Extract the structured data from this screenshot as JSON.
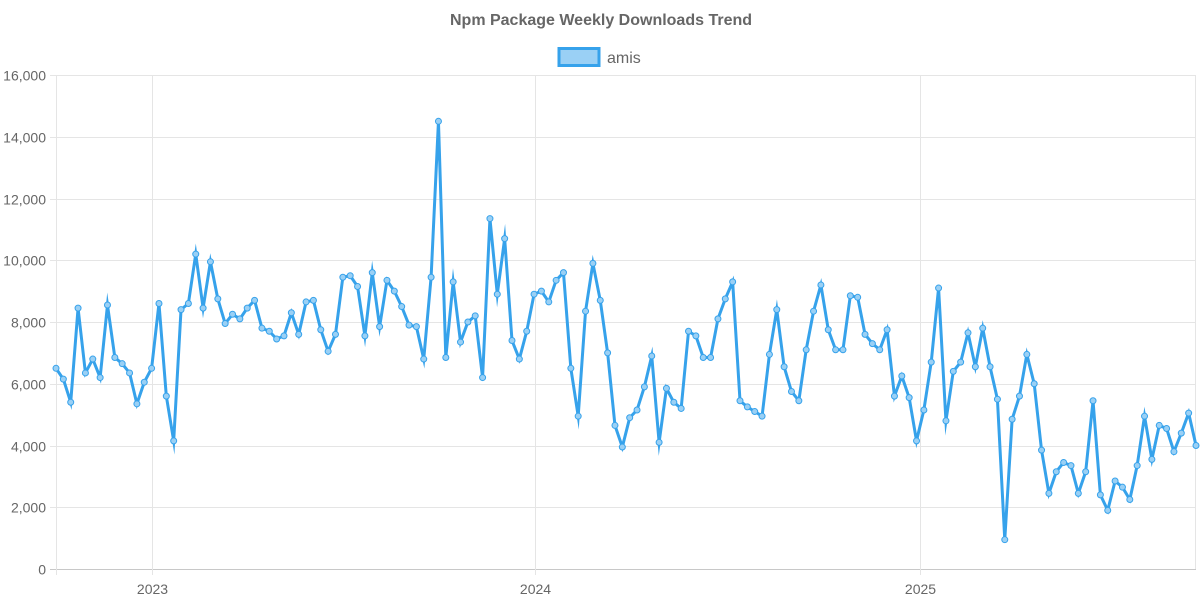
{
  "chart_data": {
    "type": "line",
    "title": "Npm Package Weekly Downloads Trend",
    "xlabel": "",
    "ylabel": "",
    "ylim": [
      0,
      16000
    ],
    "yticks": [
      0,
      2000,
      4000,
      6000,
      8000,
      10000,
      12000,
      14000,
      16000
    ],
    "ytick_labels": [
      "0",
      "2,000",
      "4,000",
      "6,000",
      "8,000",
      "10,000",
      "12,000",
      "14,000",
      "16,000"
    ],
    "xlim": [
      "2022-10-02",
      "2025-09-21"
    ],
    "xticks": [
      "2023-01-01",
      "2024-01-01",
      "2025-01-01"
    ],
    "xtick_labels": [
      "2023",
      "2024",
      "2025"
    ],
    "grid": true,
    "legend": {
      "position": "top"
    },
    "colors": {
      "line": "#36a2eb",
      "fill": "#9ad0f5"
    },
    "series": [
      {
        "name": "amis",
        "x": [
          "2022-10-02",
          "2022-10-09",
          "2022-10-16",
          "2022-10-23",
          "2022-10-30",
          "2022-11-06",
          "2022-11-13",
          "2022-11-20",
          "2022-11-27",
          "2022-12-04",
          "2022-12-11",
          "2022-12-18",
          "2022-12-25",
          "2023-01-01",
          "2023-01-08",
          "2023-01-15",
          "2023-01-22",
          "2023-01-29",
          "2023-02-05",
          "2023-02-12",
          "2023-02-19",
          "2023-02-26",
          "2023-03-05",
          "2023-03-12",
          "2023-03-19",
          "2023-03-26",
          "2023-04-02",
          "2023-04-09",
          "2023-04-16",
          "2023-04-23",
          "2023-04-30",
          "2023-05-07",
          "2023-05-14",
          "2023-05-21",
          "2023-05-28",
          "2023-06-04",
          "2023-06-11",
          "2023-06-18",
          "2023-06-25",
          "2023-07-02",
          "2023-07-09",
          "2023-07-16",
          "2023-07-23",
          "2023-07-30",
          "2023-08-06",
          "2023-08-13",
          "2023-08-20",
          "2023-08-27",
          "2023-09-03",
          "2023-09-10",
          "2023-09-17",
          "2023-09-24",
          "2023-10-01",
          "2023-10-08",
          "2023-10-15",
          "2023-10-22",
          "2023-10-29",
          "2023-11-05",
          "2023-11-12",
          "2023-11-19",
          "2023-11-26",
          "2023-12-03",
          "2023-12-10",
          "2023-12-17",
          "2023-12-24",
          "2023-12-31",
          "2024-01-07",
          "2024-01-14",
          "2024-01-21",
          "2024-01-28",
          "2024-02-04",
          "2024-02-11",
          "2024-02-18",
          "2024-02-25",
          "2024-03-03",
          "2024-03-10",
          "2024-03-17",
          "2024-03-24",
          "2024-03-31",
          "2024-04-07",
          "2024-04-14",
          "2024-04-21",
          "2024-04-28",
          "2024-05-05",
          "2024-05-12",
          "2024-05-19",
          "2024-05-26",
          "2024-06-02",
          "2024-06-09",
          "2024-06-16",
          "2024-06-23",
          "2024-06-30",
          "2024-07-07",
          "2024-07-14",
          "2024-07-21",
          "2024-07-28",
          "2024-08-04",
          "2024-08-11",
          "2024-08-18",
          "2024-08-25",
          "2024-09-01",
          "2024-09-08",
          "2024-09-15",
          "2024-09-22",
          "2024-09-29",
          "2024-10-06",
          "2024-10-13",
          "2024-10-20",
          "2024-10-27",
          "2024-11-03",
          "2024-11-10",
          "2024-11-17",
          "2024-11-24",
          "2024-12-01",
          "2024-12-08",
          "2024-12-15",
          "2024-12-22",
          "2024-12-29",
          "2025-01-05",
          "2025-01-12",
          "2025-01-19",
          "2025-01-26",
          "2025-02-02",
          "2025-02-09",
          "2025-02-16",
          "2025-02-23",
          "2025-03-02",
          "2025-03-09",
          "2025-03-16",
          "2025-03-23",
          "2025-03-30",
          "2025-04-06",
          "2025-04-13",
          "2025-04-20",
          "2025-04-27",
          "2025-05-04",
          "2025-05-11",
          "2025-05-18",
          "2025-05-25",
          "2025-06-01",
          "2025-06-08",
          "2025-06-15",
          "2025-06-22",
          "2025-06-29",
          "2025-07-06",
          "2025-07-13",
          "2025-07-20",
          "2025-07-27",
          "2025-08-03",
          "2025-08-10",
          "2025-08-17",
          "2025-08-24",
          "2025-08-31",
          "2025-09-07",
          "2025-09-14",
          "2025-09-21"
        ],
        "values": [
          6500,
          6150,
          5400,
          8450,
          6350,
          6800,
          6200,
          8550,
          6850,
          6650,
          6350,
          5350,
          6050,
          6500,
          8600,
          5600,
          4150,
          8400,
          8600,
          10200,
          8450,
          9950,
          8750,
          7950,
          8250,
          8100,
          8450,
          8700,
          7800,
          7700,
          7450,
          7550,
          8300,
          7600,
          8650,
          8700,
          7750,
          7050,
          7600,
          9450,
          9500,
          9150,
          7550,
          9600,
          7850,
          9350,
          9000,
          8500,
          7900,
          7850,
          6800,
          9450,
          14500,
          6850,
          9300,
          7350,
          8000,
          8200,
          6200,
          11350,
          8900,
          10700,
          7400,
          6800,
          7700,
          8900,
          9000,
          8650,
          9350,
          9600,
          6500,
          4950,
          8350,
          9900,
          8700,
          7000,
          4650,
          3950,
          4900,
          5150,
          5900,
          6900,
          4100,
          5850,
          5400,
          5200,
          7700,
          7550,
          6850,
          6850,
          8100,
          8750,
          9300,
          5450,
          5250,
          5100,
          4950,
          6950,
          8400,
          6550,
          5750,
          5450,
          7100,
          8350,
          9200,
          7750,
          7100,
          7100,
          8850,
          8800,
          7600,
          7300,
          7100,
          7750,
          5600,
          6250,
          5550,
          4150,
          5150,
          6700,
          9100,
          4800,
          6400,
          6700,
          7650,
          6550,
          7800,
          6550,
          5500,
          950,
          4850,
          5600,
          6950,
          6000,
          3850,
          2450,
          3150,
          3450,
          3350,
          2450,
          3150,
          5450,
          2400,
          1900,
          2850,
          2650,
          2250,
          3350,
          4950,
          3550,
          4650,
          4550,
          3800,
          4400,
          5050,
          4000
        ]
      }
    ]
  }
}
